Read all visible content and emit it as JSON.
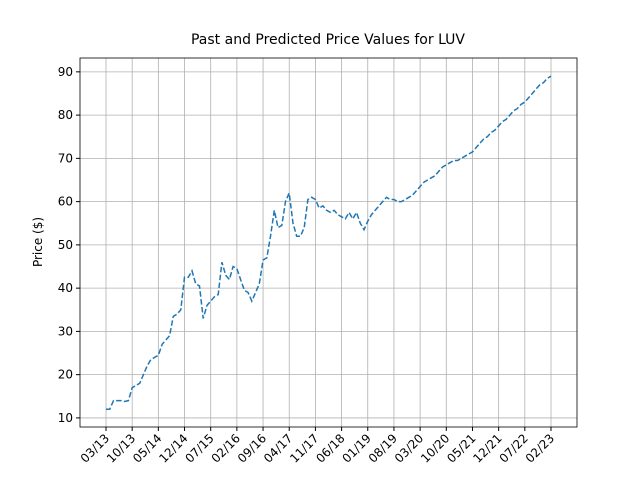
{
  "chart_data": {
    "type": "line",
    "title": "Past and Predicted Price Values for LUV",
    "y_label": "Price ($)",
    "x": [
      "03/13",
      "04/13",
      "05/13",
      "06/13",
      "07/13",
      "08/13",
      "09/13",
      "10/13",
      "11/13",
      "12/13",
      "01/14",
      "02/14",
      "03/14",
      "04/14",
      "05/14",
      "06/14",
      "07/14",
      "08/14",
      "09/14",
      "10/14",
      "11/14",
      "12/14",
      "01/15",
      "02/15",
      "03/15",
      "04/15",
      "05/15",
      "06/15",
      "07/15",
      "08/15",
      "09/15",
      "10/15",
      "11/15",
      "12/15",
      "01/16",
      "02/16",
      "03/16",
      "04/16",
      "05/16",
      "06/16",
      "07/16",
      "08/16",
      "09/16",
      "10/16",
      "11/16",
      "12/16",
      "01/17",
      "02/17",
      "03/17",
      "04/17",
      "05/17",
      "06/17",
      "07/17",
      "08/17",
      "09/17",
      "10/17",
      "11/17",
      "12/17",
      "01/18",
      "02/18",
      "03/18",
      "04/18",
      "05/18",
      "06/18",
      "07/18",
      "08/18",
      "09/18",
      "10/18",
      "11/18",
      "12/18",
      "01/19",
      "02/19",
      "03/19",
      "04/19",
      "05/19",
      "06/19",
      "07/19",
      "08/19",
      "09/19",
      "10/19",
      "11/19",
      "12/19",
      "01/20",
      "02/20",
      "03/20",
      "04/20",
      "05/20",
      "06/20",
      "07/20",
      "08/20",
      "09/20",
      "10/20",
      "11/20",
      "12/20",
      "01/21",
      "02/21",
      "03/21",
      "04/21",
      "05/21",
      "06/21",
      "07/21",
      "08/21",
      "09/21",
      "10/21",
      "11/21",
      "12/21",
      "01/22",
      "02/22",
      "03/22",
      "04/22",
      "05/22",
      "06/22",
      "07/22",
      "08/22",
      "09/22",
      "10/22",
      "11/22",
      "12/22",
      "01/23",
      "02/23"
    ],
    "values": [
      12,
      12,
      14,
      14,
      14,
      13.8,
      14,
      17,
      17.5,
      18,
      20,
      22,
      23.5,
      24,
      24.5,
      27,
      28,
      29,
      33.5,
      34,
      35,
      42.5,
      42.5,
      44,
      41,
      40.5,
      33,
      36,
      37,
      38,
      38.5,
      46,
      43,
      42,
      45,
      44.5,
      42,
      39.5,
      39,
      37,
      39,
      41,
      46.5,
      47,
      52,
      58,
      54,
      54.5,
      60,
      62,
      55,
      52,
      52,
      54,
      60.5,
      61,
      60.5,
      58.5,
      59,
      58,
      57.5,
      58,
      57,
      56.5,
      56,
      57.5,
      56,
      57.5,
      55,
      53.5,
      55.5,
      57,
      58,
      59,
      60,
      61,
      60.5,
      60.5,
      60,
      60,
      60.5,
      61,
      61.5,
      62.5,
      63.5,
      64.5,
      65,
      65.5,
      66,
      67,
      68,
      68.5,
      69,
      69.5,
      69.5,
      70,
      70.5,
      71,
      71.5,
      72.5,
      73.5,
      74.5,
      75,
      76,
      76.5,
      77.5,
      78.5,
      79,
      80,
      81,
      81.5,
      82.5,
      83,
      84,
      85,
      86,
      87,
      87.5,
      88.5,
      89
    ],
    "color": "#1f77b4",
    "xticks": [
      "03/13",
      "10/13",
      "05/14",
      "12/14",
      "07/15",
      "02/16",
      "09/16",
      "04/17",
      "11/17",
      "06/18",
      "01/19",
      "08/19",
      "03/20",
      "10/20",
      "05/21",
      "12/21",
      "07/22",
      "02/23"
    ],
    "ylim": [
      7.9,
      93.2
    ],
    "yticks": [
      10,
      20,
      30,
      40,
      50,
      60,
      70,
      80,
      90
    ],
    "grid": true
  }
}
